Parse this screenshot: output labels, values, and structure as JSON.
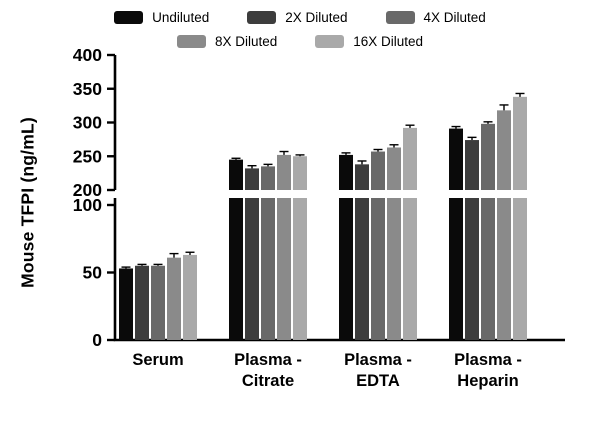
{
  "chart_data": {
    "type": "bar",
    "title": "",
    "ylabel": "Mouse  TFPI (ng/mL)",
    "categories": [
      [
        "Serum"
      ],
      [
        "Plasma -",
        "Citrate"
      ],
      [
        "Plasma -",
        "EDTA"
      ],
      [
        "Plasma -",
        "Heparin"
      ]
    ],
    "series": [
      {
        "name": "Undiluted",
        "color": "#0a0a0a",
        "values": [
          53,
          245,
          252,
          291
        ],
        "errors": [
          1,
          2,
          3,
          3
        ]
      },
      {
        "name": "2X Diluted",
        "color": "#3d3d3d",
        "values": [
          55,
          232,
          238,
          274
        ],
        "errors": [
          1,
          4,
          5,
          4
        ]
      },
      {
        "name": "4X Diluted",
        "color": "#696969",
        "values": [
          55,
          235,
          257,
          298
        ],
        "errors": [
          1,
          3,
          3,
          3
        ]
      },
      {
        "name": "8X Diluted",
        "color": "#8a8a8a",
        "values": [
          61,
          252,
          263,
          318
        ],
        "errors": [
          3,
          5,
          4,
          8
        ]
      },
      {
        "name": "16X Diluted",
        "color": "#a9a9a9",
        "values": [
          63,
          250,
          292,
          338
        ],
        "errors": [
          2,
          2,
          4,
          5
        ]
      }
    ],
    "axis": {
      "broken_axis": true,
      "lower_range": [
        0,
        100
      ],
      "upper_range": [
        200,
        400
      ],
      "yticks_lower": [
        0,
        50,
        100
      ],
      "yticks_upper": [
        200,
        250,
        300,
        350,
        400
      ],
      "grid": false,
      "legend_position": "top"
    }
  }
}
